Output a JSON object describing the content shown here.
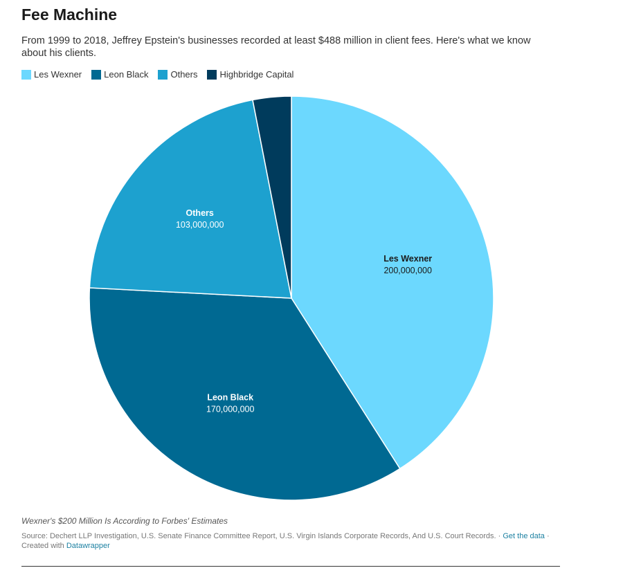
{
  "header": {
    "title": "Fee Machine",
    "subtitle": "From 1999 to 2018, Jeffrey Epstein's businesses recorded at least $488 million in client fees. Here's what we know about his clients."
  },
  "legend": [
    {
      "label": "Les Wexner",
      "color": "#6cd8fe"
    },
    {
      "label": "Leon Black",
      "color": "#006992"
    },
    {
      "label": "Others",
      "color": "#1da1cf"
    },
    {
      "label": "Highbridge Capital",
      "color": "#003b5c"
    }
  ],
  "chart_data": {
    "type": "pie",
    "title": "Fee Machine",
    "slices": [
      {
        "label": "Les Wexner",
        "value": 200000000,
        "value_text": "200,000,000",
        "color": "#6cd8fe",
        "text_color": "#1a1a1a",
        "show_label": true
      },
      {
        "label": "Leon Black",
        "value": 170000000,
        "value_text": "170,000,000",
        "color": "#006992",
        "text_color": "#ffffff",
        "show_label": true
      },
      {
        "label": "Others",
        "value": 103000000,
        "value_text": "103,000,000",
        "color": "#1da1cf",
        "text_color": "#ffffff",
        "show_label": true
      },
      {
        "label": "Highbridge Capital",
        "value": 15000000,
        "value_text": "15,000,000",
        "color": "#003b5c",
        "text_color": "#ffffff",
        "show_label": false
      }
    ],
    "start_angle": "12 o'clock",
    "direction": "clockwise",
    "legend_placement": "top-left"
  },
  "footer": {
    "notes": "Wexner's $200 Million Is According to Forbes' Estimates",
    "source_text": "Source: Dechert LLP Investigation, U.S. Senate Finance Committee Report, U.S. Virgin Islands Corporate Records, And U.S. Court Records.",
    "get_data_link": "Get the data",
    "created_with_text": "Created with",
    "datawrapper_link": "Datawrapper"
  }
}
